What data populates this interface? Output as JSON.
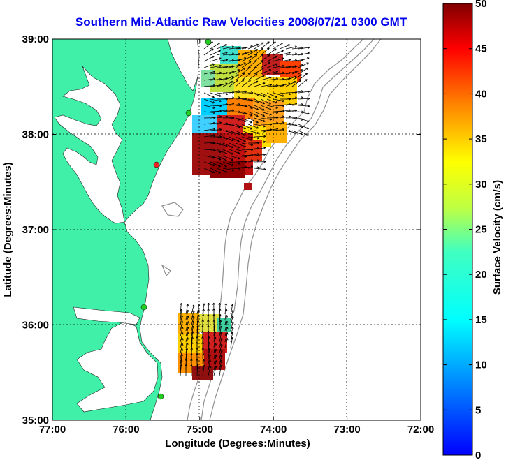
{
  "title": "Southern Mid-Atlantic Raw Velocities 2008/07/21 0300 GMT",
  "x_axis": {
    "label": "Longitude (Degrees:Minutes)",
    "ticks": [
      "77:00",
      "76:00",
      "75:00",
      "74:00",
      "73:00",
      "72:00"
    ]
  },
  "y_axis": {
    "label": "Latitude (Degrees:Minutes)",
    "ticks": [
      "39:00",
      "38:00",
      "37:00",
      "36:00",
      "35:00"
    ]
  },
  "colorbar": {
    "label": "Surface Velocity (cm/s)",
    "ticks": [
      "50",
      "45",
      "40",
      "35",
      "30",
      "25",
      "20",
      "15",
      "10",
      "5",
      "0"
    ]
  },
  "colors": {
    "land": "#40f0a8",
    "title": "#0000ee",
    "station_green": "#22cc22",
    "station_red": "#ee2222",
    "bathymetry": "#909090"
  },
  "stations": [
    {
      "type": "green",
      "lon": -75.1,
      "lat": 38.97
    },
    {
      "type": "green",
      "lon": -75.15,
      "lat": 38.22
    },
    {
      "type": "red",
      "lon": -75.55,
      "lat": 37.72
    },
    {
      "type": "green",
      "lon": -75.6,
      "lat": 36.2
    },
    {
      "type": "green",
      "lon": -75.5,
      "lat": 35.2
    }
  ],
  "velocity_patches": [
    {
      "region": "delmarva-north",
      "lon_range": [
        -75.0,
        -74.25
      ],
      "lat_range": [
        38.3,
        38.9
      ],
      "speed_cm_s": 30
    },
    {
      "region": "delmarva-core",
      "lon_range": [
        -75.15,
        -74.45
      ],
      "lat_range": [
        37.6,
        38.1
      ],
      "speed_cm_s": 48
    },
    {
      "region": "hatteras",
      "lon_range": [
        -75.3,
        -74.55
      ],
      "lat_range": [
        35.45,
        36.15
      ],
      "speed_cm_s": 30
    }
  ]
}
